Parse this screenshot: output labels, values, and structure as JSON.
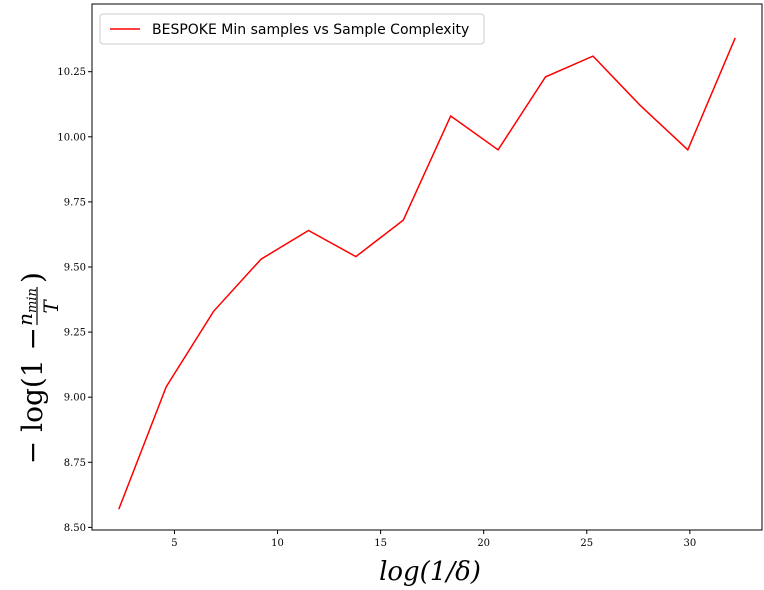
{
  "chart_data": {
    "type": "line",
    "title": "",
    "xlabel": "log(1/δ)",
    "ylabel_parts": {
      "prefix": "− log(1 −",
      "numerator": "n",
      "numerator_sub": "min",
      "denominator": "T",
      "suffix": ")"
    },
    "xlim": [
      1.0,
      33.5
    ],
    "ylim": [
      8.49,
      10.51
    ],
    "x_ticks": [
      5,
      10,
      15,
      20,
      25,
      30
    ],
    "y_ticks": [
      8.5,
      8.75,
      9.0,
      9.25,
      9.5,
      9.75,
      10.0,
      10.25
    ],
    "x_tick_labels": [
      "5",
      "10",
      "15",
      "20",
      "25",
      "30"
    ],
    "y_tick_labels": [
      "8.50",
      "8.75",
      "9.00",
      "9.25",
      "9.50",
      "9.75",
      "10.00",
      "10.25"
    ],
    "grid": false,
    "legend_position": "top-left",
    "series": [
      {
        "name": "BESPOKE Min samples vs Sample Complexity",
        "color": "#ff0000",
        "x": [
          2.3,
          4.6,
          6.9,
          9.2,
          11.5,
          13.8,
          16.1,
          18.4,
          20.7,
          23.0,
          25.3,
          27.6,
          29.9,
          32.2
        ],
        "y": [
          8.57,
          9.04,
          9.33,
          9.53,
          9.64,
          9.54,
          9.68,
          10.08,
          9.95,
          10.23,
          10.31,
          10.12,
          9.95,
          10.38
        ]
      }
    ]
  }
}
